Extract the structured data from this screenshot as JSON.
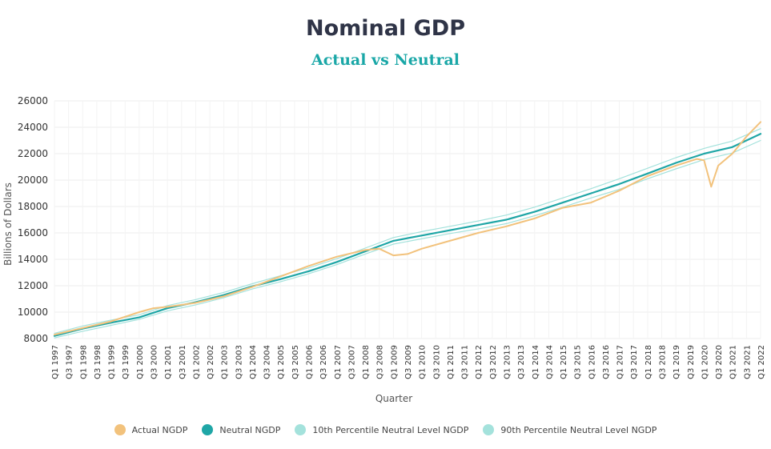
{
  "chart_data": {
    "type": "line",
    "title": "Nominal GDP",
    "subtitle": "Actual vs Neutral",
    "xlabel": "Quarter",
    "ylabel": "Billions of Dollars",
    "ylim": [
      8000,
      26000
    ],
    "yticks": [
      8000,
      10000,
      12000,
      14000,
      16000,
      18000,
      20000,
      22000,
      24000,
      26000
    ],
    "xtick_labels": [
      "Q1 1997",
      "Q3 1997",
      "Q1 1998",
      "Q3 1998",
      "Q1 1999",
      "Q3 1999",
      "Q1 2000",
      "Q3 2000",
      "Q1 2001",
      "Q3 2001",
      "Q1 2002",
      "Q3 2002",
      "Q1 2003",
      "Q3 2003",
      "Q1 2004",
      "Q3 2004",
      "Q1 2005",
      "Q3 2005",
      "Q1 2006",
      "Q3 2006",
      "Q1 2007",
      "Q3 2007",
      "Q1 2008",
      "Q3 2008",
      "Q1 2009",
      "Q3 2009",
      "Q1 2010",
      "Q3 2010",
      "Q1 2011",
      "Q3 2011",
      "Q1 2012",
      "Q3 2012",
      "Q1 2013",
      "Q3 2013",
      "Q1 2014",
      "Q3 2014",
      "Q1 2015",
      "Q3 2015",
      "Q1 2016",
      "Q3 2016",
      "Q1 2017",
      "Q3 2017",
      "Q1 2018",
      "Q3 2018",
      "Q1 2019",
      "Q3 2019",
      "Q1 2020",
      "Q3 2020",
      "Q1 2021",
      "Q3 2021",
      "Q1 2022"
    ],
    "grid": true,
    "legend_position": "bottom",
    "series": [
      {
        "name": "Actual NGDP",
        "color": "#f2c27c",
        "points": [
          [
            "Q1 1997",
            8300
          ],
          [
            "Q1 1998",
            8800
          ],
          [
            "Q1 1999",
            9300
          ],
          [
            "Q1 2000",
            10000
          ],
          [
            "Q3 2000",
            10300
          ],
          [
            "Q1 2001",
            10400
          ],
          [
            "Q1 2002",
            10700
          ],
          [
            "Q1 2003",
            11200
          ],
          [
            "Q1 2004",
            11900
          ],
          [
            "Q1 2005",
            12700
          ],
          [
            "Q1 2006",
            13500
          ],
          [
            "Q1 2007",
            14200
          ],
          [
            "Q1 2008",
            14700
          ],
          [
            "Q3 2008",
            14800
          ],
          [
            "Q1 2009",
            14300
          ],
          [
            "Q3 2009",
            14400
          ],
          [
            "Q1 2010",
            14800
          ],
          [
            "Q1 2011",
            15400
          ],
          [
            "Q1 2012",
            16000
          ],
          [
            "Q1 2013",
            16500
          ],
          [
            "Q1 2014",
            17100
          ],
          [
            "Q1 2015",
            17900
          ],
          [
            "Q1 2016",
            18300
          ],
          [
            "Q1 2017",
            19200
          ],
          [
            "Q1 2018",
            20300
          ],
          [
            "Q1 2019",
            21100
          ],
          [
            "Q4 2019",
            21600
          ],
          [
            "Q1 2020",
            21500
          ],
          [
            "Q2 2020",
            19500
          ],
          [
            "Q3 2020",
            21100
          ],
          [
            "Q1 2021",
            22000
          ],
          [
            "Q3 2021",
            23300
          ],
          [
            "Q1 2022",
            24400
          ]
        ]
      },
      {
        "name": "Neutral NGDP",
        "color": "#1fa6a6",
        "points": [
          [
            "Q1 1997",
            8200
          ],
          [
            "Q1 1998",
            8750
          ],
          [
            "Q1 1999",
            9200
          ],
          [
            "Q1 2000",
            9600
          ],
          [
            "Q1 2001",
            10300
          ],
          [
            "Q1 2002",
            10750
          ],
          [
            "Q1 2003",
            11300
          ],
          [
            "Q1 2004",
            11950
          ],
          [
            "Q1 2005",
            12500
          ],
          [
            "Q1 2006",
            13100
          ],
          [
            "Q1 2007",
            13800
          ],
          [
            "Q1 2008",
            14600
          ],
          [
            "Q1 2009",
            15400
          ],
          [
            "Q1 2010",
            15800
          ],
          [
            "Q1 2011",
            16200
          ],
          [
            "Q1 2012",
            16600
          ],
          [
            "Q1 2013",
            17000
          ],
          [
            "Q1 2014",
            17600
          ],
          [
            "Q1 2015",
            18300
          ],
          [
            "Q1 2016",
            19000
          ],
          [
            "Q1 2017",
            19700
          ],
          [
            "Q1 2018",
            20500
          ],
          [
            "Q1 2019",
            21300
          ],
          [
            "Q1 2020",
            22000
          ],
          [
            "Q1 2021",
            22500
          ],
          [
            "Q1 2022",
            23500
          ]
        ]
      },
      {
        "name": "10th Percentile Neutral Level NGDP",
        "color": "#a4e2dc",
        "points": [
          [
            "Q1 1997",
            8050
          ],
          [
            "Q1 1998",
            8550
          ],
          [
            "Q1 1999",
            9000
          ],
          [
            "Q1 2000",
            9450
          ],
          [
            "Q1 2001",
            10100
          ],
          [
            "Q1 2002",
            10550
          ],
          [
            "Q1 2003",
            11100
          ],
          [
            "Q1 2004",
            11750
          ],
          [
            "Q1 2005",
            12300
          ],
          [
            "Q1 2006",
            12900
          ],
          [
            "Q1 2007",
            13600
          ],
          [
            "Q1 2008",
            14400
          ],
          [
            "Q1 2009",
            15150
          ],
          [
            "Q1 2010",
            15550
          ],
          [
            "Q1 2011",
            15950
          ],
          [
            "Q1 2012",
            16300
          ],
          [
            "Q1 2013",
            16700
          ],
          [
            "Q1 2014",
            17300
          ],
          [
            "Q1 2015",
            17950
          ],
          [
            "Q1 2016",
            18650
          ],
          [
            "Q1 2017",
            19300
          ],
          [
            "Q1 2018",
            20100
          ],
          [
            "Q1 2019",
            20850
          ],
          [
            "Q1 2020",
            21550
          ],
          [
            "Q1 2021",
            22050
          ],
          [
            "Q1 2022",
            23000
          ]
        ]
      },
      {
        "name": "90th Percentile Neutral Level NGDP",
        "color": "#a4e2dc",
        "points": [
          [
            "Q1 1997",
            8400
          ],
          [
            "Q1 1998",
            8950
          ],
          [
            "Q1 1999",
            9400
          ],
          [
            "Q1 2000",
            9800
          ],
          [
            "Q1 2001",
            10500
          ],
          [
            "Q1 2002",
            10950
          ],
          [
            "Q1 2003",
            11500
          ],
          [
            "Q1 2004",
            12150
          ],
          [
            "Q1 2005",
            12750
          ],
          [
            "Q1 2006",
            13350
          ],
          [
            "Q1 2007",
            14050
          ],
          [
            "Q1 2008",
            14850
          ],
          [
            "Q1 2009",
            15650
          ],
          [
            "Q1 2010",
            16100
          ],
          [
            "Q1 2011",
            16500
          ],
          [
            "Q1 2012",
            16900
          ],
          [
            "Q1 2013",
            17350
          ],
          [
            "Q1 2014",
            17950
          ],
          [
            "Q1 2015",
            18650
          ],
          [
            "Q1 2016",
            19350
          ],
          [
            "Q1 2017",
            20100
          ],
          [
            "Q1 2018",
            20900
          ],
          [
            "Q1 2019",
            21700
          ],
          [
            "Q1 2020",
            22400
          ],
          [
            "Q1 2021",
            22950
          ],
          [
            "Q1 2022",
            23900
          ]
        ]
      }
    ]
  }
}
